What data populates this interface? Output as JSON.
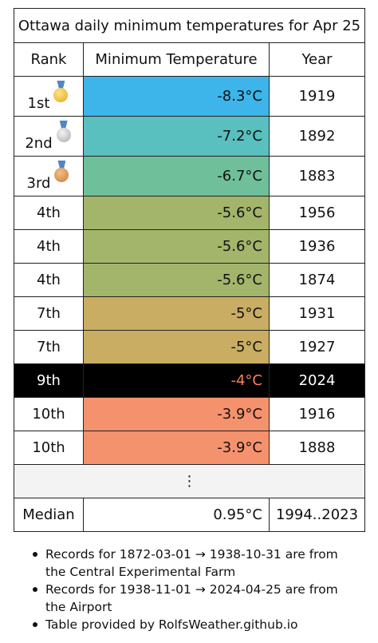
{
  "title": "Ottawa daily minimum temperatures for Apr 25",
  "headers": {
    "rank": "Rank",
    "temp": "Minimum Temperature",
    "year": "Year"
  },
  "rows": [
    {
      "rank": "1st",
      "medal": "gold-medal-icon",
      "temp": "-8.3°C",
      "year": "1919",
      "color": "#3db5ea"
    },
    {
      "rank": "2nd",
      "medal": "silver-medal-icon",
      "temp": "-7.2°C",
      "year": "1892",
      "color": "#59bfbf"
    },
    {
      "rank": "3rd",
      "medal": "bronze-medal-icon",
      "temp": "-6.7°C",
      "year": "1883",
      "color": "#6fbf9a"
    },
    {
      "rank": "4th",
      "temp": "-5.6°C",
      "year": "1956",
      "color": "#a3b56b"
    },
    {
      "rank": "4th",
      "temp": "-5.6°C",
      "year": "1936",
      "color": "#a3b56b"
    },
    {
      "rank": "4th",
      "temp": "-5.6°C",
      "year": "1874",
      "color": "#a3b56b"
    },
    {
      "rank": "7th",
      "temp": "-5°C",
      "year": "1931",
      "color": "#c9ad62"
    },
    {
      "rank": "7th",
      "temp": "-5°C",
      "year": "1927",
      "color": "#c9ad62"
    },
    {
      "rank": "9th",
      "temp": "-4°C",
      "year": "2024",
      "color": "#000000",
      "highlight": true
    },
    {
      "rank": "10th",
      "temp": "-3.9°C",
      "year": "1916",
      "color": "#f5926e"
    },
    {
      "rank": "10th",
      "temp": "-3.9°C",
      "year": "1888",
      "color": "#f5926e"
    }
  ],
  "ellipsis": "⋮",
  "median": {
    "label": "Median",
    "temp": "0.95°C",
    "years": "1994..2023"
  },
  "notes": [
    "Records for 1872-03-01 → 1938-10-31 are from the Central Experimental Farm",
    "Records for 1938-11-01 → 2024-04-25 are from the Airport",
    "Table provided by RolfsWeather.github.io"
  ]
}
